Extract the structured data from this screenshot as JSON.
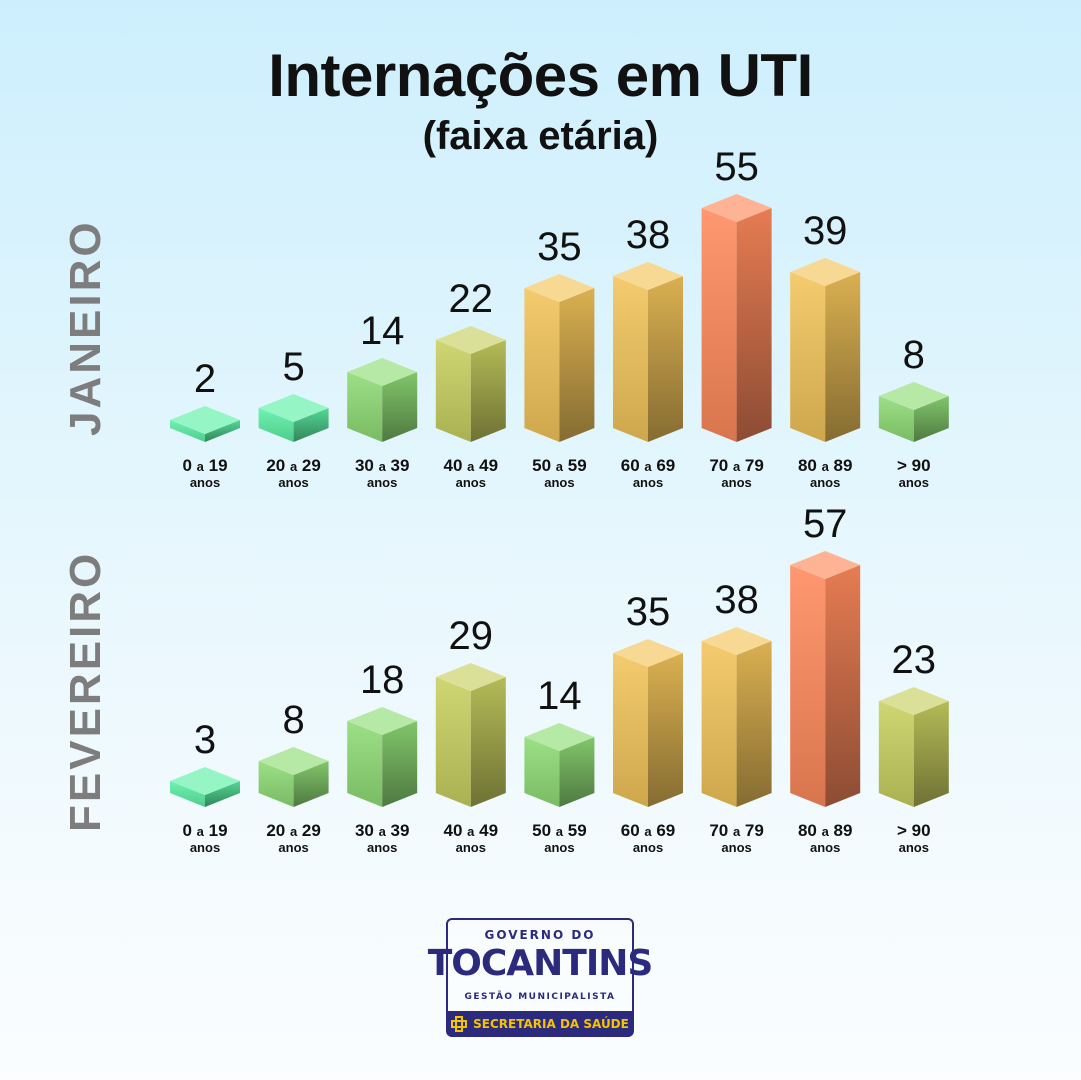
{
  "title": "Internações em UTI",
  "subtitle": "(faixa etária)",
  "chart_data": [
    {
      "type": "bar",
      "name": "JANEIRO",
      "categories": [
        "0 a 19",
        "20 a 29",
        "30 a 39",
        "40 a 49",
        "50 a 59",
        "60 a 69",
        "70 a 79",
        "80 a 89",
        "> 90"
      ],
      "category_unit": "anos",
      "values": [
        2,
        5,
        14,
        22,
        35,
        38,
        55,
        39,
        8
      ]
    },
    {
      "type": "bar",
      "name": "FEVEREIRO",
      "categories": [
        "0 a 19",
        "20 a 29",
        "30 a 39",
        "40 a 49",
        "50 a 59",
        "60 a 69",
        "70 a 79",
        "80 a 89",
        "> 90"
      ],
      "category_unit": "anos",
      "values": [
        3,
        8,
        18,
        29,
        14,
        35,
        38,
        57,
        23
      ]
    }
  ],
  "colors": {
    "green_light": "#5df0a6",
    "green": "#8fdc76",
    "olive": "#c8d060",
    "yellow": "#f2c45a",
    "orange_peak": "#ff8a5c",
    "month_label": "#7d7d7d"
  },
  "logo": {
    "top": "GOVERNO DO",
    "main": "TOCANTINS",
    "sub": "GESTÃO MUNICIPALISTA",
    "bar": "SECRETARIA DA SAÚDE"
  }
}
